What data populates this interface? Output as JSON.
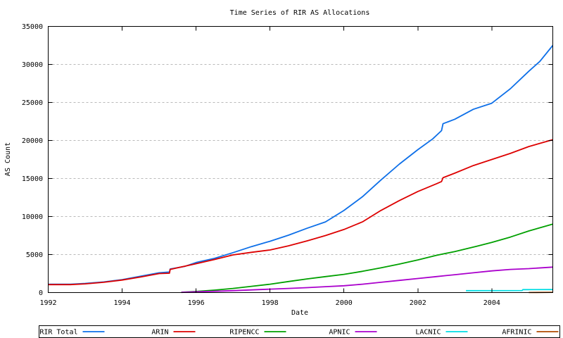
{
  "title": "Time Series of RIR AS Allocations",
  "chart_data": {
    "type": "line",
    "title": "Time Series of RIR AS Allocations",
    "xlabel": "Date",
    "ylabel": "AS Count",
    "xlim": [
      1992,
      2005.65
    ],
    "ylim": [
      0,
      35000
    ],
    "xtick_values": [
      1992,
      1994,
      1996,
      1998,
      2000,
      2002,
      2004
    ],
    "xtick_labels": [
      "1992",
      "1994",
      "1996",
      "1998",
      "2000",
      "2002",
      "2004"
    ],
    "ytick_values": [
      0,
      5000,
      10000,
      15000,
      20000,
      25000,
      30000,
      35000
    ],
    "ytick_labels": [
      "0",
      "5000",
      "10000",
      "15000",
      "20000",
      "25000",
      "30000",
      "35000"
    ],
    "grid": "horizontal-dashed",
    "grid_color": "#b9b9b9",
    "axis_color": "#000000",
    "background": "#ffffff",
    "legend_position": "bottom-row-boxed",
    "series": [
      {
        "name": "RIR Total",
        "color": "#0d6fe8",
        "points": [
          [
            1992.0,
            1100
          ],
          [
            1992.6,
            1100
          ],
          [
            1993.0,
            1200
          ],
          [
            1993.5,
            1400
          ],
          [
            1994.0,
            1700
          ],
          [
            1994.5,
            2150
          ],
          [
            1995.0,
            2600
          ],
          [
            1995.28,
            2700
          ],
          [
            1995.3,
            3100
          ],
          [
            1995.7,
            3450
          ],
          [
            1996.0,
            3950
          ],
          [
            1996.5,
            4500
          ],
          [
            1997.0,
            5250
          ],
          [
            1997.5,
            6050
          ],
          [
            1998.0,
            6750
          ],
          [
            1998.5,
            7550
          ],
          [
            1999.0,
            8450
          ],
          [
            1999.5,
            9300
          ],
          [
            2000.0,
            10800
          ],
          [
            2000.5,
            12600
          ],
          [
            2001.0,
            14800
          ],
          [
            2001.5,
            16900
          ],
          [
            2002.0,
            18800
          ],
          [
            2002.4,
            20200
          ],
          [
            2002.64,
            21300
          ],
          [
            2002.68,
            22200
          ],
          [
            2003.0,
            22800
          ],
          [
            2003.5,
            24100
          ],
          [
            2004.0,
            24900
          ],
          [
            2004.5,
            26800
          ],
          [
            2005.0,
            29100
          ],
          [
            2005.3,
            30400
          ],
          [
            2005.65,
            32500
          ]
        ]
      },
      {
        "name": "ARIN",
        "color": "#dd0000",
        "points": [
          [
            1992.0,
            1050
          ],
          [
            1992.6,
            1050
          ],
          [
            1993.0,
            1150
          ],
          [
            1993.5,
            1350
          ],
          [
            1994.0,
            1650
          ],
          [
            1994.5,
            2050
          ],
          [
            1995.0,
            2500
          ],
          [
            1995.28,
            2550
          ],
          [
            1995.3,
            3050
          ],
          [
            1996.0,
            3800
          ],
          [
            1996.5,
            4350
          ],
          [
            1997.0,
            4950
          ],
          [
            1997.5,
            5300
          ],
          [
            1998.0,
            5600
          ],
          [
            1998.5,
            6150
          ],
          [
            1999.0,
            6800
          ],
          [
            1999.5,
            7500
          ],
          [
            2000.0,
            8300
          ],
          [
            2000.5,
            9300
          ],
          [
            2001.0,
            10800
          ],
          [
            2001.5,
            12100
          ],
          [
            2002.0,
            13300
          ],
          [
            2002.5,
            14300
          ],
          [
            2002.64,
            14600
          ],
          [
            2002.68,
            15100
          ],
          [
            2003.0,
            15700
          ],
          [
            2003.5,
            16700
          ],
          [
            2004.0,
            17500
          ],
          [
            2004.5,
            18300
          ],
          [
            2005.0,
            19200
          ],
          [
            2005.65,
            20100
          ]
        ]
      },
      {
        "name": "RIPENCC",
        "color": "#00a000",
        "points": [
          [
            1995.6,
            50
          ],
          [
            1996.0,
            150
          ],
          [
            1996.5,
            320
          ],
          [
            1997.0,
            550
          ],
          [
            1997.5,
            820
          ],
          [
            1998.0,
            1100
          ],
          [
            1998.5,
            1450
          ],
          [
            1999.0,
            1800
          ],
          [
            1999.5,
            2100
          ],
          [
            2000.0,
            2400
          ],
          [
            2000.5,
            2800
          ],
          [
            2001.0,
            3250
          ],
          [
            2001.5,
            3750
          ],
          [
            2002.0,
            4300
          ],
          [
            2002.5,
            4900
          ],
          [
            2003.0,
            5400
          ],
          [
            2003.6,
            6100
          ],
          [
            2004.0,
            6600
          ],
          [
            2004.5,
            7300
          ],
          [
            2005.0,
            8100
          ],
          [
            2005.65,
            9000
          ]
        ]
      },
      {
        "name": "APNIC",
        "color": "#aa00cc",
        "points": [
          [
            1995.6,
            30
          ],
          [
            1996.0,
            100
          ],
          [
            1996.5,
            170
          ],
          [
            1997.0,
            250
          ],
          [
            1997.5,
            350
          ],
          [
            1998.0,
            450
          ],
          [
            1998.5,
            550
          ],
          [
            1999.0,
            650
          ],
          [
            1999.5,
            780
          ],
          [
            2000.0,
            900
          ],
          [
            2000.5,
            1100
          ],
          [
            2001.0,
            1350
          ],
          [
            2001.5,
            1600
          ],
          [
            2002.0,
            1850
          ],
          [
            2002.5,
            2100
          ],
          [
            2003.0,
            2350
          ],
          [
            2003.5,
            2600
          ],
          [
            2004.0,
            2850
          ],
          [
            2004.5,
            3050
          ],
          [
            2005.0,
            3150
          ],
          [
            2005.65,
            3350
          ]
        ]
      },
      {
        "name": "LACNIC",
        "color": "#00dde4",
        "points": [
          [
            2003.3,
            250
          ],
          [
            2004.82,
            270
          ],
          [
            2004.84,
            390
          ],
          [
            2005.65,
            400
          ]
        ]
      },
      {
        "name": "AFRINIC",
        "color": "#b04a00",
        "points": [
          [
            2005.0,
            10
          ],
          [
            2005.65,
            40
          ]
        ]
      }
    ]
  }
}
